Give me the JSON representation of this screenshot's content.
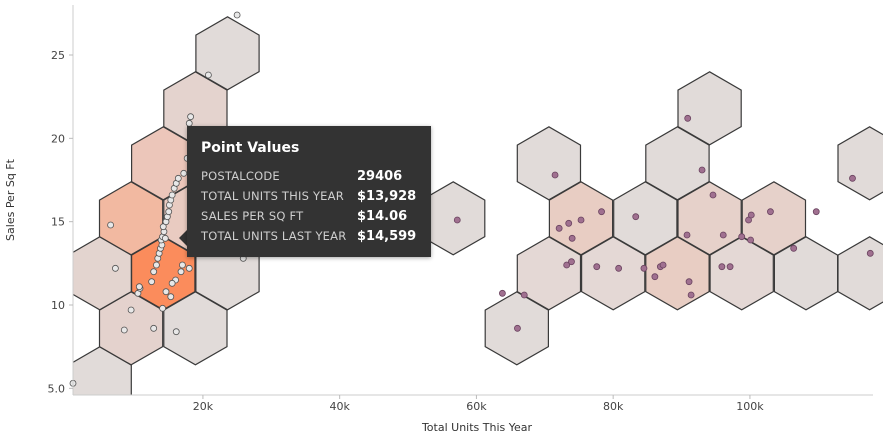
{
  "chart_data": {
    "type": "scatter",
    "xlabel": "Total Units This Year",
    "ylabel": "Sales Per Sq Ft",
    "xlim": [
      1000,
      118000
    ],
    "ylim": [
      4.6,
      28
    ],
    "x_ticks": [
      {
        "value": 20000,
        "label": "20k"
      },
      {
        "value": 40000,
        "label": "40k"
      },
      {
        "value": 60000,
        "label": "60k"
      },
      {
        "value": 80000,
        "label": "80k"
      },
      {
        "value": 100000,
        "label": "100k"
      }
    ],
    "y_ticks": [
      {
        "value": 5,
        "label": "5.0"
      },
      {
        "value": 10,
        "label": "10"
      },
      {
        "value": 15,
        "label": "15"
      },
      {
        "value": 20,
        "label": "20"
      },
      {
        "value": 25,
        "label": "25"
      }
    ],
    "hex_bins": [
      {
        "x": 4900,
        "y": 5.3,
        "fill": "#e1dbd9"
      },
      {
        "x": 9500,
        "y": 8.6,
        "fill": "#e4d2cd"
      },
      {
        "x": 18900,
        "y": 8.6,
        "fill": "#e1dbd9"
      },
      {
        "x": 4900,
        "y": 11.9,
        "fill": "#e3d4cf"
      },
      {
        "x": 14200,
        "y": 11.9,
        "fill": "#fb8c5c"
      },
      {
        "x": 23600,
        "y": 11.9,
        "fill": "#e1dbd9"
      },
      {
        "x": 9500,
        "y": 15.2,
        "fill": "#f2b9a1"
      },
      {
        "x": 18900,
        "y": 15.2,
        "fill": "#e9cbc1"
      },
      {
        "x": 14200,
        "y": 18.5,
        "fill": "#ecc6ba"
      },
      {
        "x": 18900,
        "y": 21.8,
        "fill": "#e4d3ce"
      },
      {
        "x": 23600,
        "y": 25.1,
        "fill": "#e1dbd9"
      },
      {
        "x": 56600,
        "y": 15.2,
        "fill": "#e1dbd9"
      },
      {
        "x": 65900,
        "y": 8.6,
        "fill": "#e1dbd9"
      },
      {
        "x": 70600,
        "y": 11.9,
        "fill": "#e4d8d5"
      },
      {
        "x": 70600,
        "y": 18.5,
        "fill": "#e1dbd9"
      },
      {
        "x": 75300,
        "y": 15.2,
        "fill": "#e8cdc3"
      },
      {
        "x": 80000,
        "y": 11.9,
        "fill": "#e4d8d5"
      },
      {
        "x": 84700,
        "y": 15.2,
        "fill": "#e1dbd9"
      },
      {
        "x": 89400,
        "y": 11.9,
        "fill": "#e8cdc3"
      },
      {
        "x": 89400,
        "y": 18.5,
        "fill": "#e1dbd9"
      },
      {
        "x": 94100,
        "y": 15.2,
        "fill": "#e6d1ca"
      },
      {
        "x": 94100,
        "y": 21.8,
        "fill": "#e1dbd9"
      },
      {
        "x": 98800,
        "y": 11.9,
        "fill": "#e4d8d5"
      },
      {
        "x": 103500,
        "y": 15.2,
        "fill": "#e6d1ca"
      },
      {
        "x": 108200,
        "y": 11.9,
        "fill": "#e1dbd9"
      },
      {
        "x": 117500,
        "y": 11.9,
        "fill": "#e1dbd9"
      },
      {
        "x": 117500,
        "y": 18.5,
        "fill": "#e1dbd9"
      }
    ],
    "points_highlighted": [
      [
        1000,
        5.3
      ],
      [
        8500,
        8.5
      ],
      [
        9500,
        9.7
      ],
      [
        10500,
        10.7
      ],
      [
        10800,
        11.0
      ],
      [
        10700,
        11.1
      ],
      [
        12500,
        11.4
      ],
      [
        12800,
        12.0
      ],
      [
        13200,
        12.4
      ],
      [
        13400,
        12.8
      ],
      [
        13600,
        13.1
      ],
      [
        13800,
        13.4
      ],
      [
        14000,
        13.6
      ],
      [
        13900,
        13.9
      ],
      [
        14100,
        14.1
      ],
      [
        14300,
        14.4
      ],
      [
        14500,
        14.0
      ],
      [
        14200,
        14.7
      ],
      [
        14600,
        15.0
      ],
      [
        14800,
        15.3
      ],
      [
        15000,
        15.6
      ],
      [
        15100,
        16.0
      ],
      [
        15300,
        16.3
      ],
      [
        15500,
        16.6
      ],
      [
        15800,
        17.0
      ],
      [
        16100,
        17.3
      ],
      [
        16400,
        17.6
      ],
      [
        17200,
        17.9
      ],
      [
        17700,
        18.8
      ],
      [
        18500,
        18.8
      ],
      [
        18000,
        20.9
      ],
      [
        18200,
        21.3
      ],
      [
        20800,
        23.8
      ],
      [
        25000,
        27.4
      ],
      [
        25900,
        12.8
      ],
      [
        16800,
        12.0
      ],
      [
        16000,
        11.5
      ],
      [
        15500,
        11.3
      ],
      [
        14600,
        10.8
      ],
      [
        15300,
        10.5
      ],
      [
        16100,
        8.4
      ],
      [
        12800,
        8.6
      ],
      [
        6500,
        14.8
      ],
      [
        7200,
        12.2
      ],
      [
        17000,
        12.4
      ],
      [
        18000,
        12.2
      ],
      [
        14100,
        9.8
      ]
    ],
    "points": [
      [
        57200,
        15.1
      ],
      [
        63800,
        10.7
      ],
      [
        67000,
        10.6
      ],
      [
        66000,
        8.6
      ],
      [
        71500,
        17.8
      ],
      [
        72100,
        14.6
      ],
      [
        73500,
        14.9
      ],
      [
        74000,
        14.0
      ],
      [
        75300,
        15.1
      ],
      [
        73200,
        12.4
      ],
      [
        73900,
        12.6
      ],
      [
        77600,
        12.3
      ],
      [
        78300,
        15.6
      ],
      [
        80800,
        12.2
      ],
      [
        83300,
        15.3
      ],
      [
        84500,
        12.2
      ],
      [
        86100,
        11.7
      ],
      [
        86900,
        12.3
      ],
      [
        87300,
        12.4
      ],
      [
        90800,
        14.2
      ],
      [
        91100,
        11.4
      ],
      [
        91400,
        10.6
      ],
      [
        90900,
        21.2
      ],
      [
        93000,
        18.1
      ],
      [
        94600,
        16.6
      ],
      [
        95900,
        12.3
      ],
      [
        96100,
        14.2
      ],
      [
        97100,
        12.3
      ],
      [
        98800,
        14.1
      ],
      [
        100100,
        13.9
      ],
      [
        99800,
        15.1
      ],
      [
        100200,
        15.4
      ],
      [
        103000,
        15.6
      ],
      [
        106400,
        13.4
      ],
      [
        109700,
        15.6
      ],
      [
        115000,
        17.6
      ],
      [
        117600,
        13.1
      ]
    ],
    "tooltip": {
      "title": "Point Values",
      "rows": [
        {
          "label": "POSTALCODE",
          "value": "29406"
        },
        {
          "label": "TOTAL UNITS THIS YEAR",
          "value": "$13,928"
        },
        {
          "label": "SALES PER SQ FT",
          "value": "$14.06"
        },
        {
          "label": "TOTAL UNITS LAST YEAR",
          "value": "$14,599"
        }
      ]
    },
    "colors": {
      "hex_stroke": "#3a3a3a",
      "point_fill": "#a07090",
      "point_stroke": "#6b4460",
      "highlight_fill": "#e8e8e8",
      "highlight_stroke": "#555555",
      "tooltip_bg": "#333333"
    },
    "grid": false,
    "legend": "none"
  }
}
